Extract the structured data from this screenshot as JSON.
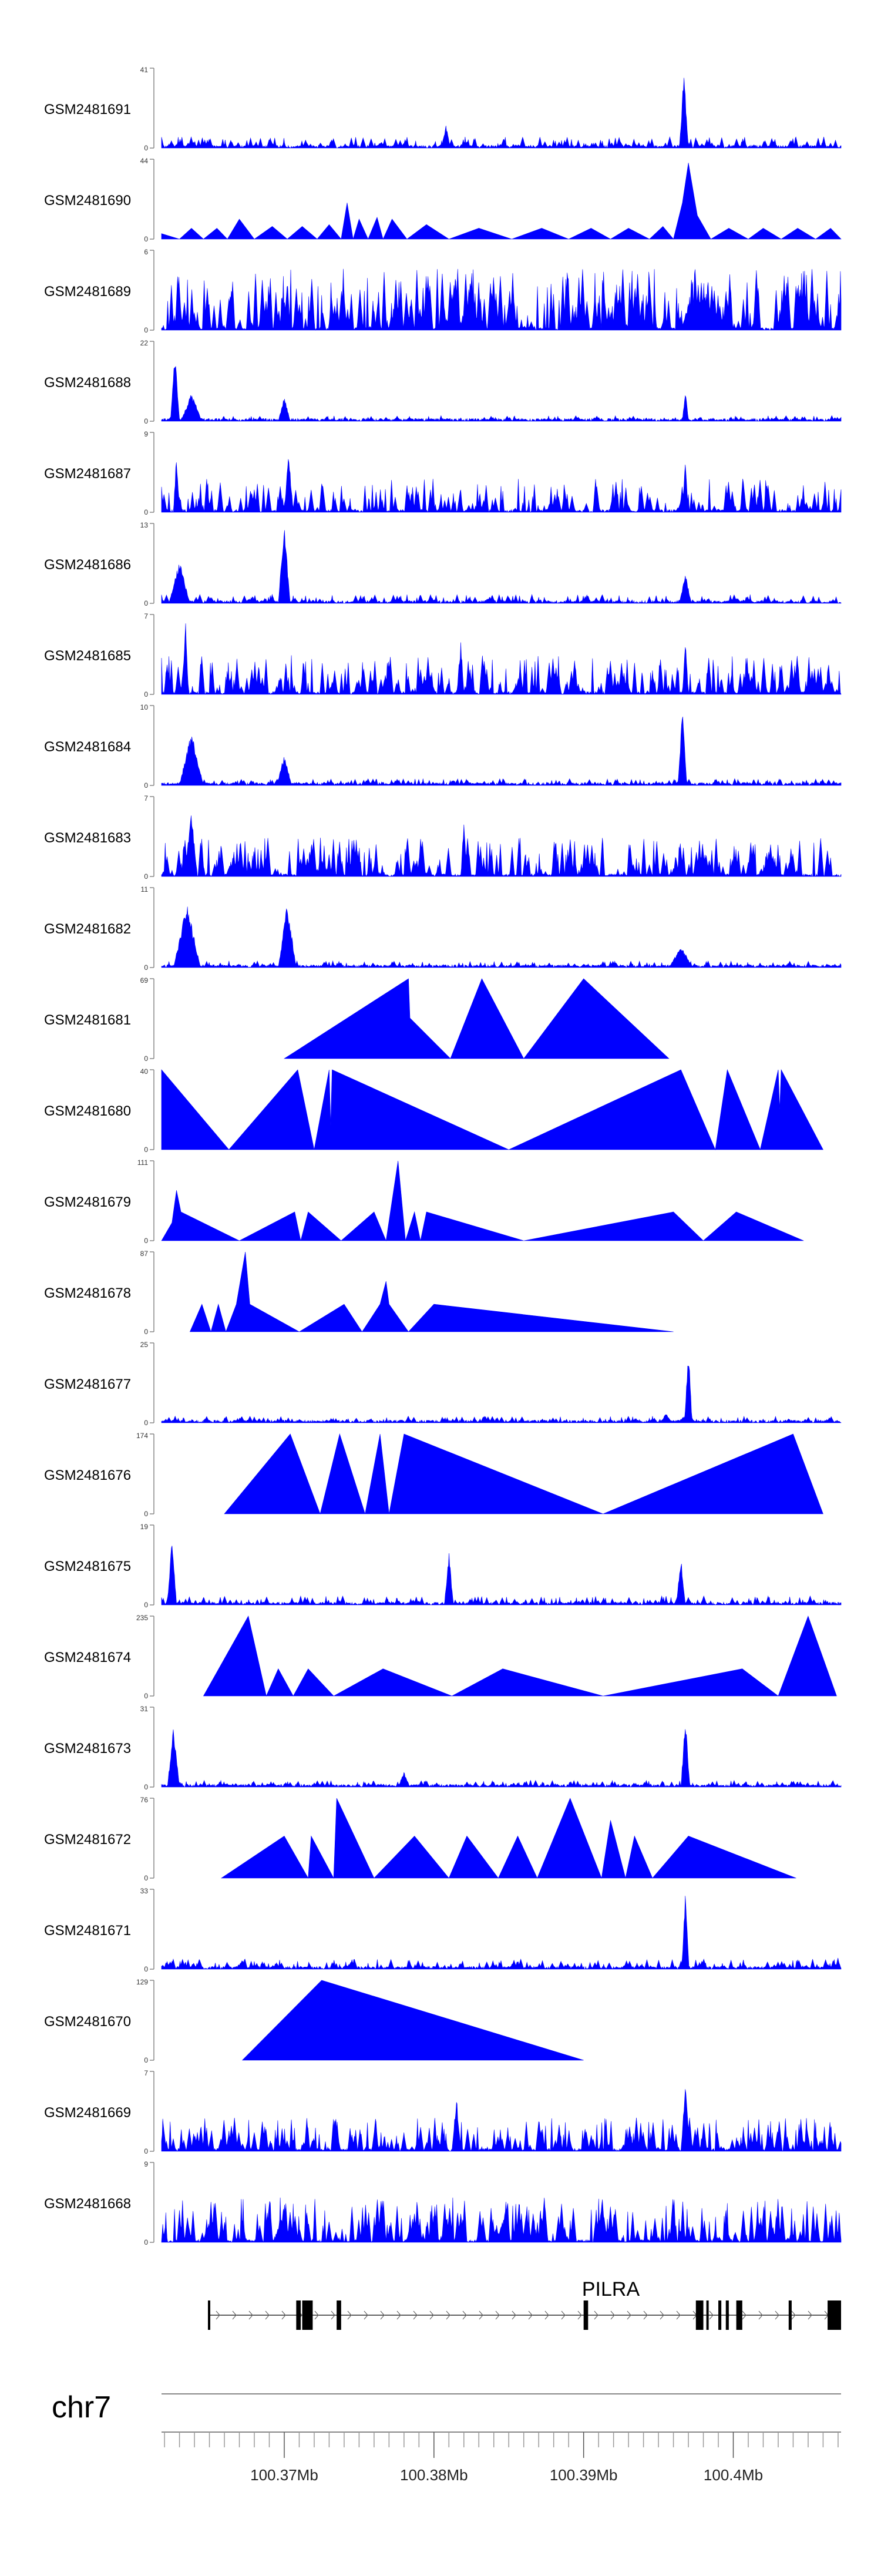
{
  "chart_data": {
    "type": "area",
    "title": "",
    "xlabel": "",
    "ylabel": "",
    "chromosome": "chr7",
    "xlim": [
      100.3618,
      100.4072
    ],
    "x_tick_labels": [
      "100.37Mb",
      "100.38Mb",
      "100.39Mb",
      "100.4Mb"
    ],
    "x_ticks": [
      100.37,
      100.38,
      100.39,
      100.4
    ],
    "colors": {
      "signal": "#0000ff",
      "gene": "#000000",
      "axis": "#888888",
      "text": "#000000"
    },
    "gene": {
      "name": "PILRA",
      "strand": "+",
      "start": 100.3649,
      "end": 100.4072,
      "exons": [
        [
          100.3649,
          100.365
        ],
        [
          100.3708,
          100.3711
        ],
        [
          100.3712,
          100.3719
        ],
        [
          100.3735,
          100.3738
        ],
        [
          100.39,
          100.3903
        ],
        [
          100.3975,
          100.398
        ],
        [
          100.3982,
          100.3983
        ],
        [
          100.399,
          100.3992
        ],
        [
          100.3995,
          100.3997
        ],
        [
          100.4002,
          100.4006
        ],
        [
          100.4037,
          100.4039
        ],
        [
          100.4063,
          100.4072
        ]
      ]
    },
    "series": [
      {
        "name": "GSM2481691",
        "ymax": 41,
        "mode": "spiky",
        "seed": 11,
        "noise": 0.1,
        "dens": 1,
        "peaks": [
          [
            100.3967,
            40,
            0.0003
          ],
          [
            100.3808,
            12,
            0.0003
          ],
          [
            100.3765,
            3,
            0.0006
          ]
        ]
      },
      {
        "name": "GSM2481690",
        "ymax": 44,
        "mode": "tri",
        "seed": 12,
        "vertices": [
          [
            100.3618,
            3
          ],
          [
            100.363,
            0
          ],
          [
            100.3638,
            6
          ],
          [
            100.3646,
            0
          ],
          [
            100.3655,
            6
          ],
          [
            100.3662,
            0
          ],
          [
            100.367,
            11
          ],
          [
            100.368,
            0
          ],
          [
            100.3692,
            7
          ],
          [
            100.3702,
            0
          ],
          [
            100.3712,
            7
          ],
          [
            100.3722,
            0
          ],
          [
            100.373,
            8
          ],
          [
            100.3738,
            0
          ],
          [
            100.3742,
            20
          ],
          [
            100.3746,
            0
          ],
          [
            100.375,
            11
          ],
          [
            100.3756,
            0
          ],
          [
            100.3762,
            12
          ],
          [
            100.3766,
            0
          ],
          [
            100.3772,
            11
          ],
          [
            100.3782,
            0
          ],
          [
            100.3795,
            8
          ],
          [
            100.381,
            0
          ],
          [
            100.383,
            6
          ],
          [
            100.3852,
            0
          ],
          [
            100.3872,
            6
          ],
          [
            100.389,
            0
          ],
          [
            100.3905,
            6
          ],
          [
            100.3918,
            0
          ],
          [
            100.393,
            6
          ],
          [
            100.3944,
            0
          ],
          [
            100.3953,
            7
          ],
          [
            100.396,
            0
          ],
          [
            100.3966,
            20
          ],
          [
            100.397,
            42
          ],
          [
            100.3976,
            13
          ],
          [
            100.3985,
            0
          ],
          [
            100.3997,
            6
          ],
          [
            100.401,
            0
          ],
          [
            100.402,
            6
          ],
          [
            100.4032,
            0
          ],
          [
            100.4043,
            6
          ],
          [
            100.4055,
            0
          ],
          [
            100.4065,
            6
          ],
          [
            100.4072,
            0
          ]
        ]
      },
      {
        "name": "GSM2481689",
        "ymax": 6,
        "mode": "spiky",
        "seed": 13,
        "noise": 0.55,
        "dens": 1.5,
        "peaks": []
      },
      {
        "name": "GSM2481688",
        "ymax": 22,
        "mode": "spiky",
        "seed": 14,
        "noise": 0.05,
        "dens": 0.8,
        "peaks": [
          [
            100.3627,
            20,
            0.0003
          ],
          [
            100.3638,
            8,
            0.0007
          ],
          [
            100.37,
            7,
            0.0004
          ],
          [
            100.3968,
            9,
            0.0002
          ]
        ]
      },
      {
        "name": "GSM2481687",
        "ymax": 9,
        "mode": "spiky",
        "seed": 15,
        "noise": 0.3,
        "dens": 1,
        "peaks": [
          [
            100.3628,
            7,
            0.0002
          ],
          [
            100.3703,
            7,
            0.0003
          ],
          [
            100.3968,
            6,
            0.0002
          ]
        ]
      },
      {
        "name": "GSM2481686",
        "ymax": 13,
        "mode": "spiky",
        "seed": 16,
        "noise": 0.08,
        "dens": 1,
        "peaks": [
          [
            100.363,
            7,
            0.0007
          ],
          [
            100.37,
            13,
            0.0004
          ],
          [
            100.3968,
            5,
            0.0004
          ]
        ]
      },
      {
        "name": "GSM2481685",
        "ymax": 7,
        "mode": "spiky",
        "seed": 17,
        "noise": 0.35,
        "dens": 1.2,
        "peaks": [
          [
            100.3634,
            7,
            0.0002
          ],
          [
            100.3818,
            5,
            0.0002
          ],
          [
            100.3968,
            5,
            0.0002
          ]
        ]
      },
      {
        "name": "GSM2481684",
        "ymax": 10,
        "mode": "spiky",
        "seed": 18,
        "noise": 0.06,
        "dens": 1,
        "peaks": [
          [
            100.3638,
            7,
            0.0008
          ],
          [
            100.37,
            4,
            0.0005
          ],
          [
            100.3966,
            9.5,
            0.0003
          ]
        ]
      },
      {
        "name": "GSM2481683",
        "ymax": 7,
        "mode": "spiky",
        "seed": 19,
        "noise": 0.35,
        "dens": 1.3,
        "peaks": [
          [
            100.3638,
            6,
            0.0004
          ],
          [
            100.382,
            5,
            0.0002
          ]
        ]
      },
      {
        "name": "GSM2481682",
        "ymax": 11,
        "mode": "spiky",
        "seed": 20,
        "noise": 0.06,
        "dens": 1,
        "peaks": [
          [
            100.3635,
            9,
            0.0009
          ],
          [
            100.3702,
            9,
            0.0006
          ],
          [
            100.3965,
            3,
            0.0008
          ]
        ]
      },
      {
        "name": "GSM2481681",
        "ymax": 69,
        "mode": "tri",
        "seed": 21,
        "vertices": [
          [
            100.37,
            0
          ],
          [
            100.3783,
            69
          ],
          [
            100.3784,
            35
          ],
          [
            100.3811,
            0
          ],
          [
            100.3832,
            69
          ],
          [
            100.386,
            0
          ],
          [
            100.39,
            69
          ],
          [
            100.3957,
            0
          ]
        ]
      },
      {
        "name": "GSM2481680",
        "ymax": 40,
        "mode": "tri",
        "seed": 22,
        "vertices": [
          [
            100.3618,
            40
          ],
          [
            100.3663,
            0
          ],
          [
            100.3709,
            40
          ],
          [
            100.372,
            0
          ],
          [
            100.373,
            40
          ],
          [
            100.3731,
            12
          ],
          [
            100.3732,
            40
          ],
          [
            100.385,
            0
          ],
          [
            100.3965,
            40
          ],
          [
            100.3988,
            0
          ],
          [
            100.3996,
            40
          ],
          [
            100.4018,
            0
          ],
          [
            100.403,
            40
          ],
          [
            100.4031,
            20
          ],
          [
            100.4032,
            40
          ],
          [
            100.406,
            0
          ]
        ]
      },
      {
        "name": "GSM2481679",
        "ymax": 111,
        "mode": "tri",
        "seed": 23,
        "vertices": [
          [
            100.3618,
            0
          ],
          [
            100.3625,
            25
          ],
          [
            100.3628,
            70
          ],
          [
            100.3631,
            40
          ],
          [
            100.367,
            0
          ],
          [
            100.3707,
            40
          ],
          [
            100.3711,
            0
          ],
          [
            100.3716,
            40
          ],
          [
            100.3738,
            0
          ],
          [
            100.376,
            40
          ],
          [
            100.3768,
            0
          ],
          [
            100.3776,
            111
          ],
          [
            100.3781,
            0
          ],
          [
            100.3787,
            40
          ],
          [
            100.3791,
            0
          ],
          [
            100.3795,
            40
          ],
          [
            100.386,
            0
          ],
          [
            100.396,
            40
          ],
          [
            100.398,
            0
          ],
          [
            100.4002,
            40
          ],
          [
            100.4047,
            0
          ]
        ]
      },
      {
        "name": "GSM2481678",
        "ymax": 87,
        "mode": "tri",
        "seed": 24,
        "vertices": [
          [
            100.3637,
            0
          ],
          [
            100.3645,
            30
          ],
          [
            100.3651,
            0
          ],
          [
            100.3656,
            30
          ],
          [
            100.3661,
            0
          ],
          [
            100.3668,
            30
          ],
          [
            100.3674,
            87
          ],
          [
            100.3677,
            30
          ],
          [
            100.371,
            0
          ],
          [
            100.374,
            30
          ],
          [
            100.3752,
            0
          ],
          [
            100.3764,
            30
          ],
          [
            100.3768,
            55
          ],
          [
            100.377,
            30
          ],
          [
            100.3783,
            0
          ],
          [
            100.38,
            30
          ],
          [
            100.396,
            0
          ]
        ]
      },
      {
        "name": "GSM2481677",
        "ymax": 25,
        "mode": "spiky",
        "seed": 25,
        "noise": 0.06,
        "dens": 1,
        "peaks": [
          [
            100.397,
            24,
            0.00025
          ],
          [
            100.3955,
            3,
            0.0004
          ]
        ]
      },
      {
        "name": "GSM2481676",
        "ymax": 174,
        "mode": "tri",
        "seed": 26,
        "vertices": [
          [
            100.366,
            0
          ],
          [
            100.3704,
            174
          ],
          [
            100.3724,
            0
          ],
          [
            100.3737,
            174
          ],
          [
            100.3754,
            0
          ],
          [
            100.3764,
            174
          ],
          [
            100.377,
            0
          ],
          [
            100.378,
            174
          ],
          [
            100.3913,
            0
          ],
          [
            100.404,
            174
          ],
          [
            100.406,
            0
          ]
        ]
      },
      {
        "name": "GSM2481675",
        "ymax": 19,
        "mode": "spiky",
        "seed": 27,
        "noise": 0.08,
        "dens": 1,
        "peaks": [
          [
            100.3625,
            18,
            0.0003
          ],
          [
            100.381,
            13,
            0.0003
          ],
          [
            100.3965,
            12,
            0.0003
          ]
        ]
      },
      {
        "name": "GSM2481674",
        "ymax": 235,
        "mode": "tri",
        "seed": 28,
        "vertices": [
          [
            100.3646,
            0
          ],
          [
            100.3676,
            235
          ],
          [
            100.3688,
            0
          ],
          [
            100.3696,
            80
          ],
          [
            100.3706,
            0
          ],
          [
            100.3716,
            80
          ],
          [
            100.3733,
            0
          ],
          [
            100.3766,
            80
          ],
          [
            100.3812,
            0
          ],
          [
            100.3846,
            80
          ],
          [
            100.3913,
            0
          ],
          [
            100.4006,
            80
          ],
          [
            100.403,
            0
          ],
          [
            100.405,
            235
          ],
          [
            100.4069,
            0
          ]
        ]
      },
      {
        "name": "GSM2481673",
        "ymax": 31,
        "mode": "spiky",
        "seed": 29,
        "noise": 0.06,
        "dens": 1,
        "peaks": [
          [
            100.3626,
            25,
            0.0004
          ],
          [
            100.3968,
            28,
            0.0003
          ],
          [
            100.378,
            6,
            0.0004
          ]
        ]
      },
      {
        "name": "GSM2481672",
        "ymax": 76,
        "mode": "tri",
        "seed": 30,
        "vertices": [
          [
            100.3658,
            0
          ],
          [
            100.37,
            40
          ],
          [
            100.3716,
            0
          ],
          [
            100.3718,
            40
          ],
          [
            100.3733,
            0
          ],
          [
            100.3735,
            76
          ],
          [
            100.376,
            0
          ],
          [
            100.3787,
            40
          ],
          [
            100.381,
            0
          ],
          [
            100.3822,
            40
          ],
          [
            100.3843,
            0
          ],
          [
            100.3856,
            40
          ],
          [
            100.3869,
            0
          ],
          [
            100.3891,
            76
          ],
          [
            100.3912,
            0
          ],
          [
            100.3918,
            55
          ],
          [
            100.3928,
            0
          ],
          [
            100.3934,
            40
          ],
          [
            100.3946,
            0
          ],
          [
            100.397,
            40
          ],
          [
            100.4042,
            0
          ]
        ]
      },
      {
        "name": "GSM2481671",
        "ymax": 33,
        "mode": "spiky",
        "seed": 31,
        "noise": 0.09,
        "dens": 1.1,
        "peaks": [
          [
            100.3968,
            32,
            0.00025
          ],
          [
            100.407,
            5,
            0.0002
          ]
        ]
      },
      {
        "name": "GSM2481670",
        "ymax": 129,
        "mode": "tri",
        "seed": 32,
        "vertices": [
          [
            100.3672,
            0
          ],
          [
            100.3725,
            129
          ],
          [
            100.39,
            0
          ]
        ]
      },
      {
        "name": "GSM2481669",
        "ymax": 7,
        "mode": "spiky",
        "seed": 33,
        "noise": 0.3,
        "dens": 1.2,
        "peaks": [
          [
            100.3815,
            5,
            0.0003
          ],
          [
            100.3968,
            6,
            0.0003
          ]
        ]
      },
      {
        "name": "GSM2481668",
        "ymax": 9,
        "mode": "spiky",
        "seed": 34,
        "noise": 0.4,
        "dens": 1.3,
        "peaks": []
      }
    ]
  }
}
